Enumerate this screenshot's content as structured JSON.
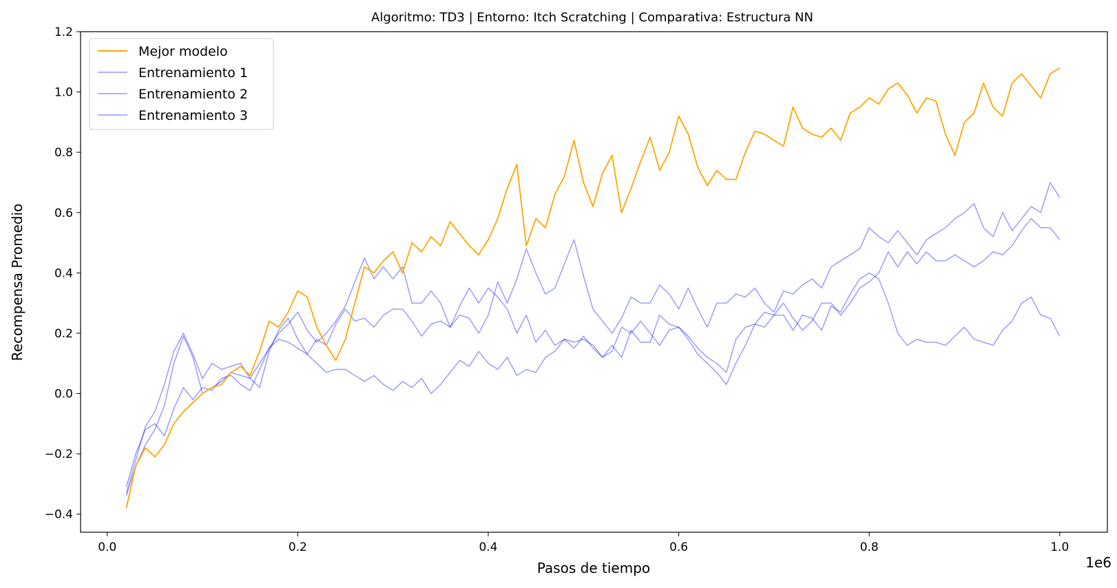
{
  "chart_data": {
    "type": "line",
    "title": "Algoritmo: TD3 | Entorno: Itch Scratching | Comparativa: Estructura NN",
    "xlabel": "Pasos de tiempo",
    "ylabel": "Recompensa Promedio",
    "x_offset_label": "1e6",
    "xlim": [
      -0.028,
      1.05
    ],
    "ylim": [
      -0.46,
      1.2
    ],
    "x_ticks": [
      0.0,
      0.2,
      0.4,
      0.6,
      0.8,
      1.0
    ],
    "x_tick_labels": [
      "0.0",
      "0.2",
      "0.4",
      "0.6",
      "0.8",
      "1.0"
    ],
    "y_ticks": [
      -0.4,
      -0.2,
      0.0,
      0.2,
      0.4,
      0.6,
      0.8,
      1.0,
      1.2
    ],
    "y_tick_labels": [
      "−0.4",
      "−0.2",
      "0.0",
      "0.2",
      "0.4",
      "0.6",
      "0.8",
      "1.0",
      "1.2"
    ],
    "legend_position": "top-left",
    "series": [
      {
        "name": "Mejor modelo",
        "color": "#ffa500",
        "opacity": 1.0,
        "x": [
          0.02,
          0.03,
          0.04,
          0.05,
          0.06,
          0.07,
          0.08,
          0.09,
          0.1,
          0.11,
          0.12,
          0.13,
          0.14,
          0.15,
          0.16,
          0.17,
          0.18,
          0.19,
          0.2,
          0.21,
          0.22,
          0.23,
          0.24,
          0.25,
          0.26,
          0.27,
          0.28,
          0.29,
          0.3,
          0.31,
          0.32,
          0.33,
          0.34,
          0.35,
          0.36,
          0.37,
          0.38,
          0.39,
          0.4,
          0.41,
          0.42,
          0.43,
          0.44,
          0.45,
          0.46,
          0.47,
          0.48,
          0.49,
          0.5,
          0.51,
          0.52,
          0.53,
          0.54,
          0.55,
          0.56,
          0.57,
          0.58,
          0.59,
          0.6,
          0.61,
          0.62,
          0.63,
          0.64,
          0.65,
          0.66,
          0.67,
          0.68,
          0.69,
          0.7,
          0.71,
          0.72,
          0.73,
          0.74,
          0.75,
          0.76,
          0.77,
          0.78,
          0.79,
          0.8,
          0.81,
          0.82,
          0.83,
          0.84,
          0.85,
          0.86,
          0.87,
          0.88,
          0.89,
          0.9,
          0.91,
          0.92,
          0.93,
          0.94,
          0.95,
          0.96,
          0.97,
          0.98,
          0.99,
          1.0
        ],
        "values": [
          -0.38,
          -0.24,
          -0.18,
          -0.21,
          -0.17,
          -0.1,
          -0.06,
          -0.03,
          0.0,
          0.02,
          0.03,
          0.07,
          0.09,
          0.06,
          0.14,
          0.24,
          0.22,
          0.27,
          0.34,
          0.32,
          0.22,
          0.16,
          0.11,
          0.18,
          0.3,
          0.42,
          0.4,
          0.44,
          0.47,
          0.4,
          0.5,
          0.47,
          0.52,
          0.49,
          0.57,
          0.53,
          0.49,
          0.46,
          0.51,
          0.58,
          0.68,
          0.76,
          0.49,
          0.58,
          0.55,
          0.66,
          0.72,
          0.84,
          0.7,
          0.62,
          0.73,
          0.79,
          0.6,
          0.68,
          0.77,
          0.85,
          0.74,
          0.8,
          0.92,
          0.86,
          0.75,
          0.69,
          0.74,
          0.71,
          0.71,
          0.8,
          0.87,
          0.86,
          0.84,
          0.82,
          0.95,
          0.88,
          0.86,
          0.85,
          0.88,
          0.84,
          0.93,
          0.95,
          0.98,
          0.96,
          1.01,
          1.03,
          0.99,
          0.93,
          0.98,
          0.97,
          0.86,
          0.79,
          0.9,
          0.93,
          1.03,
          0.95,
          0.92,
          1.03,
          1.06,
          1.02,
          0.98,
          1.06,
          1.08
        ]
      },
      {
        "name": "Entrenamiento 1",
        "color": "#0000ff",
        "opacity": 0.42,
        "x": [
          0.02,
          0.03,
          0.04,
          0.05,
          0.06,
          0.07,
          0.08,
          0.09,
          0.1,
          0.11,
          0.12,
          0.13,
          0.14,
          0.15,
          0.16,
          0.17,
          0.18,
          0.19,
          0.2,
          0.21,
          0.22,
          0.23,
          0.24,
          0.25,
          0.26,
          0.27,
          0.28,
          0.29,
          0.3,
          0.31,
          0.32,
          0.33,
          0.34,
          0.35,
          0.36,
          0.37,
          0.38,
          0.39,
          0.4,
          0.41,
          0.42,
          0.43,
          0.44,
          0.45,
          0.46,
          0.47,
          0.48,
          0.49,
          0.5,
          0.51,
          0.52,
          0.53,
          0.54,
          0.55,
          0.56,
          0.57,
          0.58,
          0.59,
          0.6,
          0.61,
          0.62,
          0.63,
          0.64,
          0.65,
          0.66,
          0.67,
          0.68,
          0.69,
          0.7,
          0.71,
          0.72,
          0.73,
          0.74,
          0.75,
          0.76,
          0.77,
          0.78,
          0.79,
          0.8,
          0.81,
          0.82,
          0.83,
          0.84,
          0.85,
          0.86,
          0.87,
          0.88,
          0.89,
          0.9,
          0.91,
          0.92,
          0.93,
          0.94,
          0.95,
          0.96,
          0.97,
          0.98,
          0.99,
          1.0
        ],
        "values": [
          -0.33,
          -0.22,
          -0.11,
          -0.06,
          0.03,
          0.14,
          0.2,
          0.13,
          0.05,
          0.1,
          0.08,
          0.09,
          0.1,
          0.05,
          0.02,
          0.14,
          0.21,
          0.25,
          0.18,
          0.13,
          0.1,
          0.07,
          0.08,
          0.08,
          0.06,
          0.04,
          0.06,
          0.03,
          0.01,
          0.04,
          0.02,
          0.05,
          0.0,
          0.03,
          0.07,
          0.11,
          0.09,
          0.14,
          0.1,
          0.08,
          0.12,
          0.06,
          0.08,
          0.07,
          0.12,
          0.14,
          0.18,
          0.17,
          0.18,
          0.16,
          0.12,
          0.14,
          0.22,
          0.2,
          0.24,
          0.2,
          0.16,
          0.21,
          0.22,
          0.18,
          0.13,
          0.1,
          0.07,
          0.03,
          0.1,
          0.16,
          0.23,
          0.27,
          0.26,
          0.26,
          0.21,
          0.26,
          0.25,
          0.21,
          0.29,
          0.27,
          0.33,
          0.38,
          0.4,
          0.38,
          0.3,
          0.2,
          0.16,
          0.18,
          0.17,
          0.17,
          0.16,
          0.19,
          0.22,
          0.18,
          0.17,
          0.16,
          0.21,
          0.24,
          0.3,
          0.32,
          0.26,
          0.25,
          0.19
        ]
      },
      {
        "name": "Entrenamiento 2",
        "color": "#0000ff",
        "opacity": 0.42,
        "x": [
          0.02,
          0.03,
          0.04,
          0.05,
          0.06,
          0.07,
          0.08,
          0.09,
          0.1,
          0.11,
          0.12,
          0.13,
          0.14,
          0.15,
          0.16,
          0.17,
          0.18,
          0.19,
          0.2,
          0.21,
          0.22,
          0.23,
          0.24,
          0.25,
          0.26,
          0.27,
          0.28,
          0.29,
          0.3,
          0.31,
          0.32,
          0.33,
          0.34,
          0.35,
          0.36,
          0.37,
          0.38,
          0.39,
          0.4,
          0.41,
          0.42,
          0.43,
          0.44,
          0.45,
          0.46,
          0.47,
          0.48,
          0.49,
          0.5,
          0.51,
          0.52,
          0.53,
          0.54,
          0.55,
          0.56,
          0.57,
          0.58,
          0.59,
          0.6,
          0.61,
          0.62,
          0.63,
          0.64,
          0.65,
          0.66,
          0.67,
          0.68,
          0.69,
          0.7,
          0.71,
          0.72,
          0.73,
          0.74,
          0.75,
          0.76,
          0.77,
          0.78,
          0.79,
          0.8,
          0.81,
          0.82,
          0.83,
          0.84,
          0.85,
          0.86,
          0.87,
          0.88,
          0.89,
          0.9,
          0.91,
          0.92,
          0.93,
          0.94,
          0.95,
          0.96,
          0.97,
          0.98,
          0.99,
          1.0
        ],
        "values": [
          -0.31,
          -0.2,
          -0.12,
          -0.1,
          -0.14,
          -0.05,
          0.02,
          -0.02,
          0.02,
          0.01,
          0.05,
          0.06,
          0.03,
          0.01,
          0.08,
          0.15,
          0.2,
          0.23,
          0.27,
          0.21,
          0.17,
          0.2,
          0.24,
          0.29,
          0.37,
          0.45,
          0.38,
          0.42,
          0.38,
          0.42,
          0.3,
          0.3,
          0.34,
          0.3,
          0.22,
          0.26,
          0.25,
          0.2,
          0.26,
          0.37,
          0.3,
          0.38,
          0.48,
          0.4,
          0.33,
          0.35,
          0.43,
          0.51,
          0.39,
          0.28,
          0.24,
          0.2,
          0.25,
          0.32,
          0.3,
          0.3,
          0.36,
          0.33,
          0.28,
          0.35,
          0.28,
          0.22,
          0.3,
          0.3,
          0.33,
          0.32,
          0.35,
          0.3,
          0.27,
          0.34,
          0.33,
          0.36,
          0.38,
          0.35,
          0.42,
          0.44,
          0.46,
          0.48,
          0.55,
          0.52,
          0.5,
          0.54,
          0.5,
          0.46,
          0.51,
          0.53,
          0.55,
          0.58,
          0.6,
          0.63,
          0.55,
          0.52,
          0.6,
          0.54,
          0.58,
          0.62,
          0.6,
          0.7,
          0.65
        ]
      },
      {
        "name": "Entrenamiento 3",
        "color": "#0000ff",
        "opacity": 0.42,
        "x": [
          0.02,
          0.03,
          0.04,
          0.05,
          0.06,
          0.07,
          0.08,
          0.09,
          0.1,
          0.11,
          0.12,
          0.13,
          0.14,
          0.15,
          0.16,
          0.17,
          0.18,
          0.19,
          0.2,
          0.21,
          0.22,
          0.23,
          0.24,
          0.25,
          0.26,
          0.27,
          0.28,
          0.29,
          0.3,
          0.31,
          0.32,
          0.33,
          0.34,
          0.35,
          0.36,
          0.37,
          0.38,
          0.39,
          0.4,
          0.41,
          0.42,
          0.43,
          0.44,
          0.45,
          0.46,
          0.47,
          0.48,
          0.49,
          0.5,
          0.51,
          0.52,
          0.53,
          0.54,
          0.55,
          0.56,
          0.57,
          0.58,
          0.59,
          0.6,
          0.61,
          0.62,
          0.63,
          0.64,
          0.65,
          0.66,
          0.67,
          0.68,
          0.69,
          0.7,
          0.71,
          0.72,
          0.73,
          0.74,
          0.75,
          0.76,
          0.77,
          0.78,
          0.79,
          0.8,
          0.81,
          0.82,
          0.83,
          0.84,
          0.85,
          0.86,
          0.87,
          0.88,
          0.89,
          0.9,
          0.91,
          0.92,
          0.93,
          0.94,
          0.95,
          0.96,
          0.97,
          0.98,
          0.99,
          1.0
        ],
        "values": [
          -0.34,
          -0.24,
          -0.17,
          -0.12,
          -0.04,
          0.1,
          0.19,
          0.12,
          0.0,
          0.02,
          0.04,
          0.07,
          0.06,
          0.05,
          0.1,
          0.15,
          0.18,
          0.17,
          0.15,
          0.13,
          0.18,
          0.16,
          0.23,
          0.28,
          0.24,
          0.25,
          0.22,
          0.26,
          0.28,
          0.28,
          0.24,
          0.19,
          0.23,
          0.24,
          0.22,
          0.29,
          0.35,
          0.3,
          0.35,
          0.32,
          0.28,
          0.2,
          0.26,
          0.17,
          0.21,
          0.16,
          0.18,
          0.15,
          0.19,
          0.15,
          0.12,
          0.16,
          0.12,
          0.21,
          0.17,
          0.17,
          0.26,
          0.23,
          0.22,
          0.19,
          0.15,
          0.12,
          0.1,
          0.07,
          0.18,
          0.22,
          0.23,
          0.22,
          0.26,
          0.3,
          0.25,
          0.21,
          0.24,
          0.3,
          0.3,
          0.26,
          0.3,
          0.35,
          0.37,
          0.4,
          0.47,
          0.42,
          0.47,
          0.43,
          0.47,
          0.44,
          0.44,
          0.46,
          0.44,
          0.42,
          0.44,
          0.47,
          0.46,
          0.49,
          0.54,
          0.58,
          0.55,
          0.55,
          0.51
        ]
      }
    ]
  }
}
